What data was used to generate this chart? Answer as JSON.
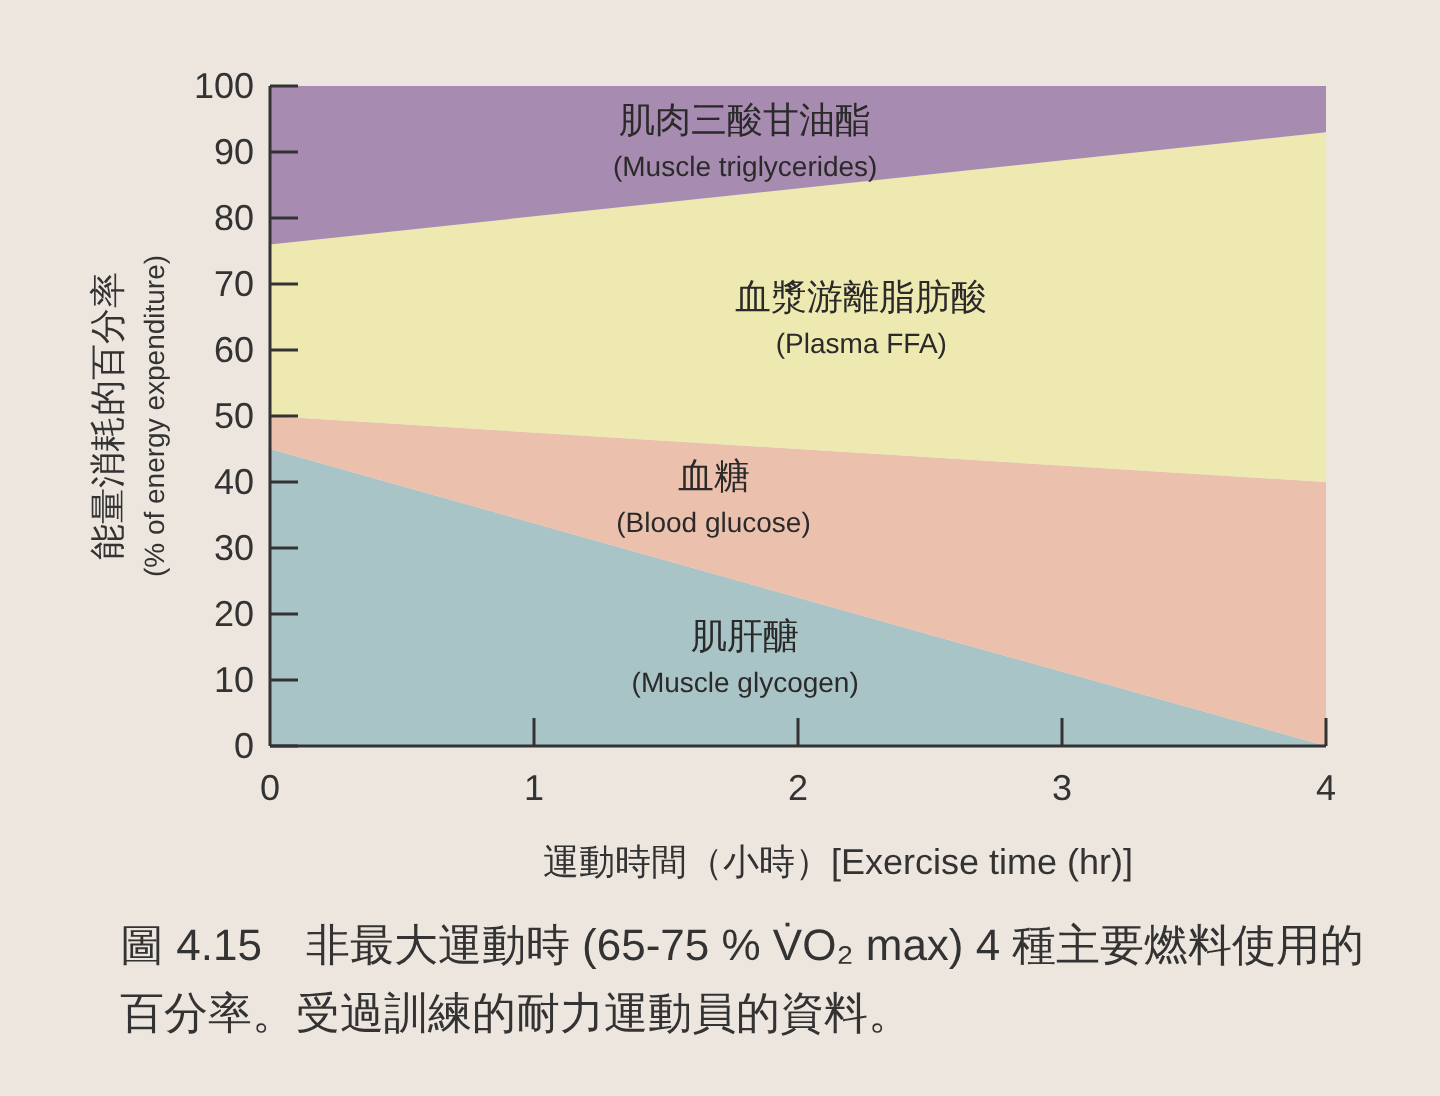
{
  "chart_data": {
    "type": "area",
    "stacked": true,
    "xlabel": "運動時間（小時）[Exercise time (hr)]",
    "ylabel": "能量消耗的百分率 (% of energy expenditure)",
    "x": [
      0,
      4
    ],
    "xlim": [
      0,
      4
    ],
    "xticks": [
      0,
      1,
      2,
      3,
      4
    ],
    "ylim": [
      0,
      100
    ],
    "yticks": [
      0,
      10,
      20,
      30,
      40,
      50,
      60,
      70,
      80,
      90,
      100
    ],
    "series": [
      {
        "name": "肌肝醣 (Muscle glycogen)",
        "color": "#a9c4c6",
        "values": [
          45,
          0
        ]
      },
      {
        "name": "血糖 (Blood glucose)",
        "color": "#ebc1ae",
        "values": [
          5,
          40
        ]
      },
      {
        "name": "血漿游離脂肪酸 (Plasma FFA)",
        "color": "#ede9b0",
        "values": [
          26,
          53
        ]
      },
      {
        "name": "肌肉三酸甘油酯 (Muscle triglycerides)",
        "color": "#a78bb0",
        "values": [
          24,
          7
        ]
      }
    ],
    "annotations": [
      "圖 4.15　非最大運動時 (65-75 % V̇O₂ max) 4 種主要燃料使用的百分率。受過訓練的耐力運動員的資料。"
    ]
  }
}
